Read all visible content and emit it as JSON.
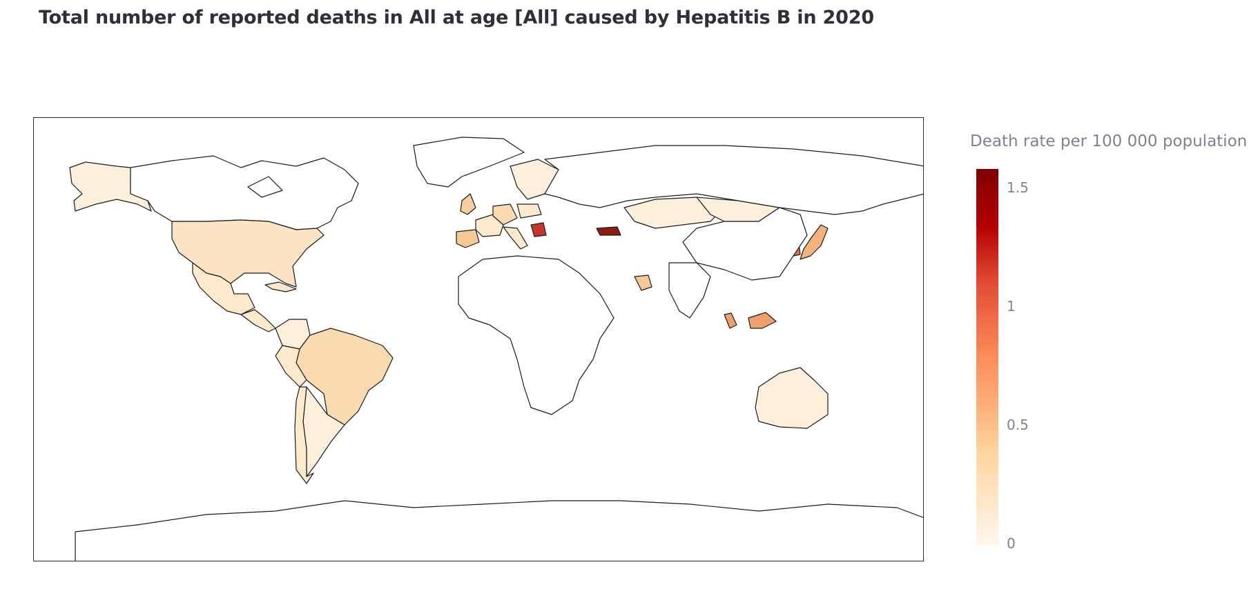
{
  "title": "Total number of reported deaths in All at age [All] caused by Hepatitis B in 2020",
  "legend": {
    "title": "Death rate per 100 000 population",
    "ticks": [
      "1.5",
      "1",
      "0.5",
      "0"
    ],
    "range": [
      0,
      1.6
    ],
    "colorscale": [
      "#fff7ec",
      "#fdd49e",
      "#fdbb84",
      "#fc8d59",
      "#e34a33",
      "#b30000",
      "#7f0000"
    ]
  },
  "map": {
    "type": "choropleth",
    "projection": "equirectangular",
    "no_data_color": "#ffffff",
    "border_color": "#1a1a1a",
    "countries": [
      {
        "name": "Alaska (USA)",
        "fill": "#fdf0da",
        "rate": 0.15
      },
      {
        "name": "Canada",
        "fill": "#ffffff",
        "rate": null
      },
      {
        "name": "USA",
        "fill": "#fbe3c3",
        "rate": 0.2
      },
      {
        "name": "Mexico",
        "fill": "#fdeacd",
        "rate": 0.15
      },
      {
        "name": "Central America",
        "fill": "#fdeacd",
        "rate": 0.15
      },
      {
        "name": "Cuba",
        "fill": "#fdeacd",
        "rate": 0.15
      },
      {
        "name": "Colombia",
        "fill": "#fdefd9",
        "rate": 0.1
      },
      {
        "name": "Brazil",
        "fill": "#f9dbaf",
        "rate": 0.3
      },
      {
        "name": "Peru",
        "fill": "#fdeacd",
        "rate": 0.15
      },
      {
        "name": "Argentina",
        "fill": "#fdefd9",
        "rate": 0.1
      },
      {
        "name": "Chile",
        "fill": "#fdeacd",
        "rate": 0.15
      },
      {
        "name": "Greenland",
        "fill": "#ffffff",
        "rate": null
      },
      {
        "name": "Spain",
        "fill": "#f6c893",
        "rate": 0.45
      },
      {
        "name": "France",
        "fill": "#fdeacd",
        "rate": 0.15
      },
      {
        "name": "UK",
        "fill": "#f7cf9f",
        "rate": 0.4
      },
      {
        "name": "Germany",
        "fill": "#f9dbaf",
        "rate": 0.3
      },
      {
        "name": "Poland",
        "fill": "#fdeacd",
        "rate": 0.15
      },
      {
        "name": "Scandinavia",
        "fill": "#fdefd9",
        "rate": 0.1
      },
      {
        "name": "Italy",
        "fill": "#fdeacd",
        "rate": 0.15
      },
      {
        "name": "Serbia",
        "fill": "#c5352a",
        "rate": 1.2
      },
      {
        "name": "Georgia",
        "fill": "#8e1a12",
        "rate": 1.5
      },
      {
        "name": "Kazakhstan",
        "fill": "#fdefd9",
        "rate": 0.1
      },
      {
        "name": "Mongolia",
        "fill": "#fdefd9",
        "rate": 0.1
      },
      {
        "name": "Russia",
        "fill": "#ffffff",
        "rate": null
      },
      {
        "name": "Oman",
        "fill": "#f6c893",
        "rate": 0.45
      },
      {
        "name": "South Korea",
        "fill": "#e9714b",
        "rate": 0.9
      },
      {
        "name": "Japan",
        "fill": "#f3b47c",
        "rate": 0.6
      },
      {
        "name": "Malaysia",
        "fill": "#eda06b",
        "rate": 0.7
      },
      {
        "name": "Borneo (Malaysia)",
        "fill": "#eda06b",
        "rate": 0.7
      },
      {
        "name": "Australia",
        "fill": "#fdefd9",
        "rate": 0.1
      },
      {
        "name": "Africa",
        "fill": "#ffffff",
        "rate": null
      },
      {
        "name": "China",
        "fill": "#ffffff",
        "rate": null
      },
      {
        "name": "India",
        "fill": "#ffffff",
        "rate": null
      },
      {
        "name": "Antarctica",
        "fill": "#ffffff",
        "rate": null
      }
    ]
  }
}
